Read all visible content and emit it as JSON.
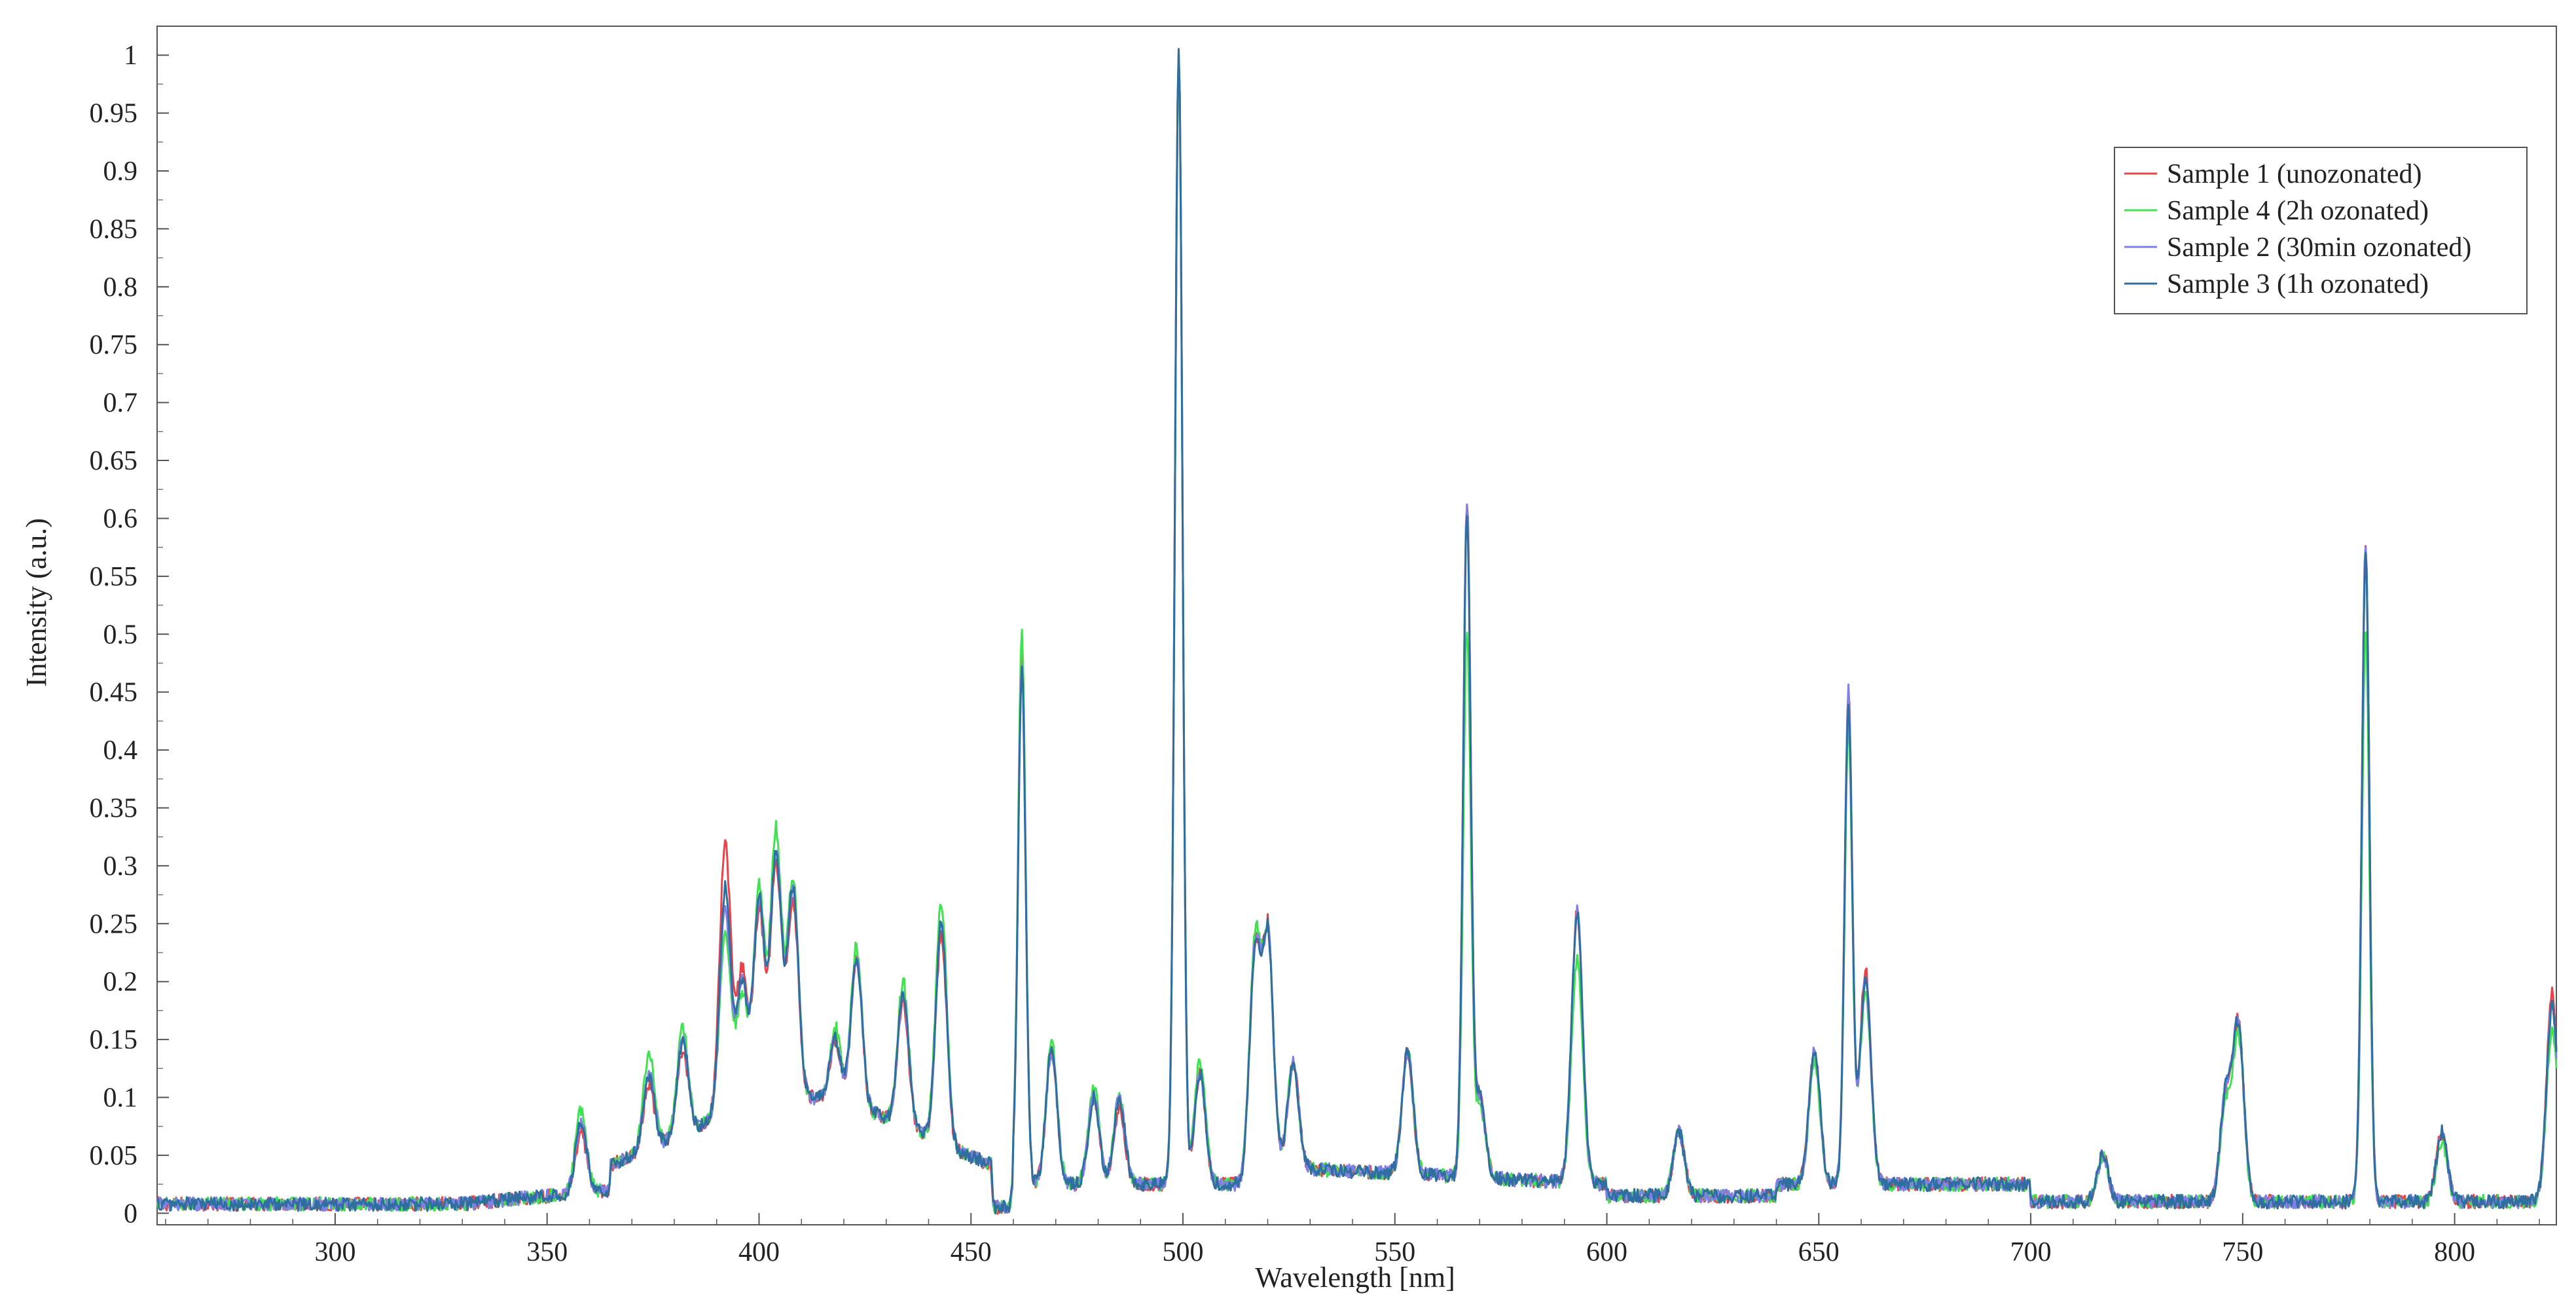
{
  "chart_data": {
    "type": "line",
    "title": "",
    "xlabel": "Wavelength [nm]",
    "ylabel": "Intensity (a.u.)",
    "xlim": [
      258,
      824
    ],
    "ylim": [
      -0.01,
      1.025
    ],
    "grid": false,
    "legend_position": "top-right",
    "x_ticks": [
      300,
      350,
      400,
      450,
      500,
      550,
      600,
      650,
      700,
      750,
      800
    ],
    "y_ticks": [
      0,
      0.05,
      0.1,
      0.15,
      0.2,
      0.25,
      0.3,
      0.35,
      0.4,
      0.45,
      0.5,
      0.55,
      0.6,
      0.65,
      0.7,
      0.75,
      0.8,
      0.85,
      0.9,
      0.95,
      1
    ],
    "y_tick_labels": [
      "0",
      "0.05",
      "0.1",
      "0.15",
      "0.2",
      "0.25",
      "0.3",
      "0.35",
      "0.4",
      "0.45",
      "0.5",
      "0.55",
      "0.6",
      "0.65",
      "0.7",
      "0.75",
      "0.8",
      "0.85",
      "0.9",
      "0.95",
      "1"
    ],
    "series": [
      {
        "name": "Sample 1 (unozonated)",
        "color": "#e8434a",
        "peaks": [
          [
            358,
            0.07
          ],
          [
            374,
            0.11
          ],
          [
            382,
            0.14
          ],
          [
            392,
            0.32
          ],
          [
            396,
            0.21
          ],
          [
            400,
            0.26
          ],
          [
            404,
            0.3
          ],
          [
            408,
            0.27
          ],
          [
            418,
            0.15
          ],
          [
            423,
            0.22
          ],
          [
            434,
            0.18
          ],
          [
            443,
            0.24
          ],
          [
            462,
            0.48
          ],
          [
            469,
            0.14
          ],
          [
            479,
            0.1
          ],
          [
            485,
            0.09
          ],
          [
            499,
            1.0
          ],
          [
            504,
            0.12
          ],
          [
            517,
            0.22
          ],
          [
            520,
            0.24
          ],
          [
            526,
            0.13
          ],
          [
            553,
            0.14
          ],
          [
            567,
            0.61
          ],
          [
            570,
            0.1
          ],
          [
            593,
            0.26
          ],
          [
            617,
            0.07
          ],
          [
            649,
            0.14
          ],
          [
            657,
            0.45
          ],
          [
            661,
            0.21
          ],
          [
            717,
            0.05
          ],
          [
            746,
            0.1
          ],
          [
            749,
            0.16
          ],
          [
            779,
            0.58
          ],
          [
            797,
            0.07
          ],
          [
            823,
            0.19
          ]
        ]
      },
      {
        "name": "Sample 4 (2h ozonated)",
        "color": "#3fe34f",
        "peaks": [
          [
            358,
            0.09
          ],
          [
            374,
            0.14
          ],
          [
            382,
            0.16
          ],
          [
            392,
            0.24
          ],
          [
            396,
            0.19
          ],
          [
            400,
            0.28
          ],
          [
            404,
            0.33
          ],
          [
            408,
            0.29
          ],
          [
            418,
            0.16
          ],
          [
            423,
            0.23
          ],
          [
            434,
            0.2
          ],
          [
            443,
            0.27
          ],
          [
            462,
            0.5
          ],
          [
            469,
            0.15
          ],
          [
            479,
            0.11
          ],
          [
            485,
            0.1
          ],
          [
            499,
            0.99
          ],
          [
            504,
            0.13
          ],
          [
            517,
            0.23
          ],
          [
            520,
            0.24
          ],
          [
            526,
            0.13
          ],
          [
            553,
            0.14
          ],
          [
            567,
            0.5
          ],
          [
            570,
            0.09
          ],
          [
            593,
            0.22
          ],
          [
            617,
            0.07
          ],
          [
            649,
            0.13
          ],
          [
            657,
            0.42
          ],
          [
            661,
            0.19
          ],
          [
            717,
            0.05
          ],
          [
            746,
            0.09
          ],
          [
            749,
            0.15
          ],
          [
            779,
            0.5
          ],
          [
            797,
            0.06
          ],
          [
            823,
            0.16
          ]
        ]
      },
      {
        "name": "Sample 2 (30min ozonated)",
        "color": "#7f7fe6",
        "peaks": [
          [
            358,
            0.08
          ],
          [
            374,
            0.12
          ],
          [
            382,
            0.15
          ],
          [
            392,
            0.26
          ],
          [
            396,
            0.2
          ],
          [
            400,
            0.27
          ],
          [
            404,
            0.31
          ],
          [
            408,
            0.28
          ],
          [
            418,
            0.15
          ],
          [
            423,
            0.22
          ],
          [
            434,
            0.19
          ],
          [
            443,
            0.25
          ],
          [
            462,
            0.47
          ],
          [
            469,
            0.14
          ],
          [
            479,
            0.1
          ],
          [
            485,
            0.1
          ],
          [
            499,
            1.0
          ],
          [
            504,
            0.12
          ],
          [
            517,
            0.22
          ],
          [
            520,
            0.24
          ],
          [
            526,
            0.13
          ],
          [
            553,
            0.14
          ],
          [
            567,
            0.61
          ],
          [
            570,
            0.1
          ],
          [
            593,
            0.26
          ],
          [
            617,
            0.07
          ],
          [
            649,
            0.14
          ],
          [
            657,
            0.45
          ],
          [
            661,
            0.2
          ],
          [
            717,
            0.05
          ],
          [
            746,
            0.1
          ],
          [
            749,
            0.16
          ],
          [
            779,
            0.58
          ],
          [
            797,
            0.07
          ],
          [
            823,
            0.18
          ]
        ]
      },
      {
        "name": "Sample 3 (1h ozonated)",
        "color": "#2f6fa0",
        "peaks": [
          [
            358,
            0.08
          ],
          [
            374,
            0.12
          ],
          [
            382,
            0.15
          ],
          [
            392,
            0.28
          ],
          [
            396,
            0.2
          ],
          [
            400,
            0.27
          ],
          [
            404,
            0.31
          ],
          [
            408,
            0.28
          ],
          [
            418,
            0.15
          ],
          [
            423,
            0.22
          ],
          [
            434,
            0.19
          ],
          [
            443,
            0.25
          ],
          [
            462,
            0.47
          ],
          [
            469,
            0.14
          ],
          [
            479,
            0.1
          ],
          [
            485,
            0.1
          ],
          [
            499,
            1.0
          ],
          [
            504,
            0.12
          ],
          [
            517,
            0.22
          ],
          [
            520,
            0.24
          ],
          [
            526,
            0.13
          ],
          [
            553,
            0.14
          ],
          [
            567,
            0.6
          ],
          [
            570,
            0.1
          ],
          [
            593,
            0.26
          ],
          [
            617,
            0.07
          ],
          [
            649,
            0.14
          ],
          [
            657,
            0.44
          ],
          [
            661,
            0.2
          ],
          [
            717,
            0.05
          ],
          [
            746,
            0.1
          ],
          [
            749,
            0.16
          ],
          [
            779,
            0.57
          ],
          [
            797,
            0.07
          ],
          [
            823,
            0.18
          ]
        ]
      }
    ]
  }
}
